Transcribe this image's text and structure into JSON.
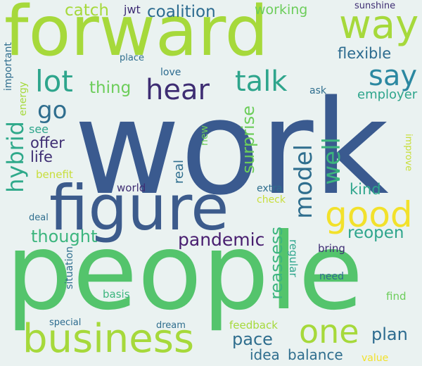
{
  "words": {
    "work": {
      "text": "work",
      "color": "#3a5a8f"
    },
    "people": {
      "text": "people",
      "color": "#54c46c"
    },
    "forward": {
      "text": "forward",
      "color": "#a6d93b"
    },
    "figure": {
      "text": "figure",
      "color": "#3c5b8c"
    },
    "business": {
      "text": "business",
      "color": "#a6d93b"
    },
    "way": {
      "text": "way",
      "color": "#a6d93b"
    },
    "good": {
      "text": "good",
      "color": "#f2e12b"
    },
    "one": {
      "text": "one",
      "color": "#a6d93b"
    },
    "hear": {
      "text": "hear",
      "color": "#3e2d73"
    },
    "talk": {
      "text": "talk",
      "color": "#2ea58c"
    },
    "lot": {
      "text": "lot",
      "color": "#2ea58c"
    },
    "say": {
      "text": "say",
      "color": "#2b88a1"
    },
    "go": {
      "text": "go",
      "color": "#2f6e8e"
    },
    "hybrid": {
      "text": "hybrid",
      "color": "#2fa98a"
    },
    "model": {
      "text": "model",
      "color": "#2f6e8e"
    },
    "well": {
      "text": "well",
      "color": "#3cb57e"
    },
    "coalition": {
      "text": "coalition",
      "color": "#2c6b8f"
    },
    "catch": {
      "text": "catch",
      "color": "#a6d93b"
    },
    "working": {
      "text": "working",
      "color": "#6ccd5a"
    },
    "flexible": {
      "text": "flexible",
      "color": "#2c6b8f"
    },
    "thing": {
      "text": "thing",
      "color": "#6ccd5a"
    },
    "surprise": {
      "text": "surprise",
      "color": "#6ccd5a"
    },
    "pandemic": {
      "text": "pandemic",
      "color": "#481d6f"
    },
    "thought": {
      "text": "thought",
      "color": "#3cb57e"
    },
    "reopen": {
      "text": "reopen",
      "color": "#2ea58c"
    },
    "plan": {
      "text": "plan",
      "color": "#2c6b8f"
    },
    "pace": {
      "text": "pace",
      "color": "#2f6e8e"
    },
    "idea": {
      "text": "idea",
      "color": "#2f6e8e"
    },
    "balance": {
      "text": "balance",
      "color": "#2f6e8e"
    },
    "kind": {
      "text": "kind",
      "color": "#2ea58c"
    },
    "reassess": {
      "text": "reassess",
      "color": "#3cb57e"
    },
    "life": {
      "text": "life",
      "color": "#3e2d73"
    },
    "offer": {
      "text": "offer",
      "color": "#3e2d73"
    },
    "see": {
      "text": "see",
      "color": "#2ea58c"
    },
    "employer": {
      "text": "employer",
      "color": "#2ea58c"
    },
    "real": {
      "text": "real",
      "color": "#2f6e8e"
    },
    "benefit": {
      "text": "benefit",
      "color": "#c8de3a"
    },
    "world": {
      "text": "world",
      "color": "#3e2d73"
    },
    "energy": {
      "text": "energy",
      "color": "#a6d93b"
    },
    "important": {
      "text": "important",
      "color": "#2f6e8e"
    },
    "place": {
      "text": "place",
      "color": "#2f6e8e"
    },
    "love": {
      "text": "love",
      "color": "#2c6b8f"
    },
    "ask": {
      "text": "ask",
      "color": "#2f6e8e"
    },
    "jwt": {
      "text": "jwt",
      "color": "#3e2d73"
    },
    "sunshine": {
      "text": "sunshine",
      "color": "#3e2d73"
    },
    "new": {
      "text": "new",
      "color": "#6ccd5a"
    },
    "extra": {
      "text": "extra",
      "color": "#2f6e8e"
    },
    "check": {
      "text": "check",
      "color": "#c8de3a"
    },
    "deal": {
      "text": "deal",
      "color": "#2f6e8e"
    },
    "regular": {
      "text": "regular",
      "color": "#2ea58c"
    },
    "bring": {
      "text": "bring",
      "color": "#3e2d73"
    },
    "need": {
      "text": "need",
      "color": "#2f6e8e"
    },
    "situation": {
      "text": "situation",
      "color": "#2f6e8e"
    },
    "basis": {
      "text": "basis",
      "color": "#3cb57e"
    },
    "find": {
      "text": "find",
      "color": "#6ccd5a"
    },
    "special": {
      "text": "special",
      "color": "#2c6b8f"
    },
    "dream": {
      "text": "dream",
      "color": "#2f6e8e"
    },
    "feedback": {
      "text": "feedback",
      "color": "#a6d93b"
    },
    "improve": {
      "text": "improve",
      "color": "#c8de3a"
    },
    "value": {
      "text": "value",
      "color": "#f2e12b"
    }
  },
  "background_color": "#eaf2f1"
}
